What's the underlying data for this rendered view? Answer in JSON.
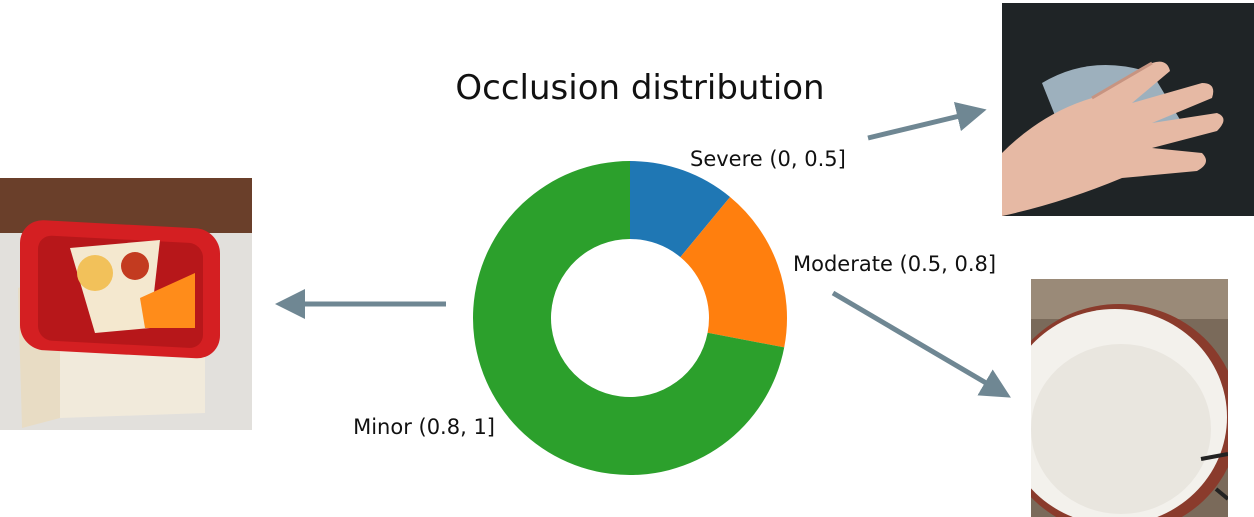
{
  "chart_data": {
    "type": "pie",
    "title": "Occlusion distribution",
    "categories": [
      "Severe (0, 0.5]",
      "Moderate (0.5, 0.8]",
      "Minor (0.8, 1]"
    ],
    "values": [
      11,
      17,
      72
    ],
    "colors": [
      "#1f77b4",
      "#ff7f0e",
      "#2ca02c"
    ],
    "donut": true,
    "legend": "none"
  },
  "annotations": {
    "arrow_color": "#6f8793",
    "photos": [
      {
        "category": "Severe (0, 0.5]",
        "subject": "hand partially covering a crumpled object"
      },
      {
        "category": "Moderate (0.5, 0.8]",
        "subject": "white plate with brown rim"
      },
      {
        "category": "Minor (0.8, 1]",
        "subject": "red-lidded food container"
      }
    ]
  }
}
